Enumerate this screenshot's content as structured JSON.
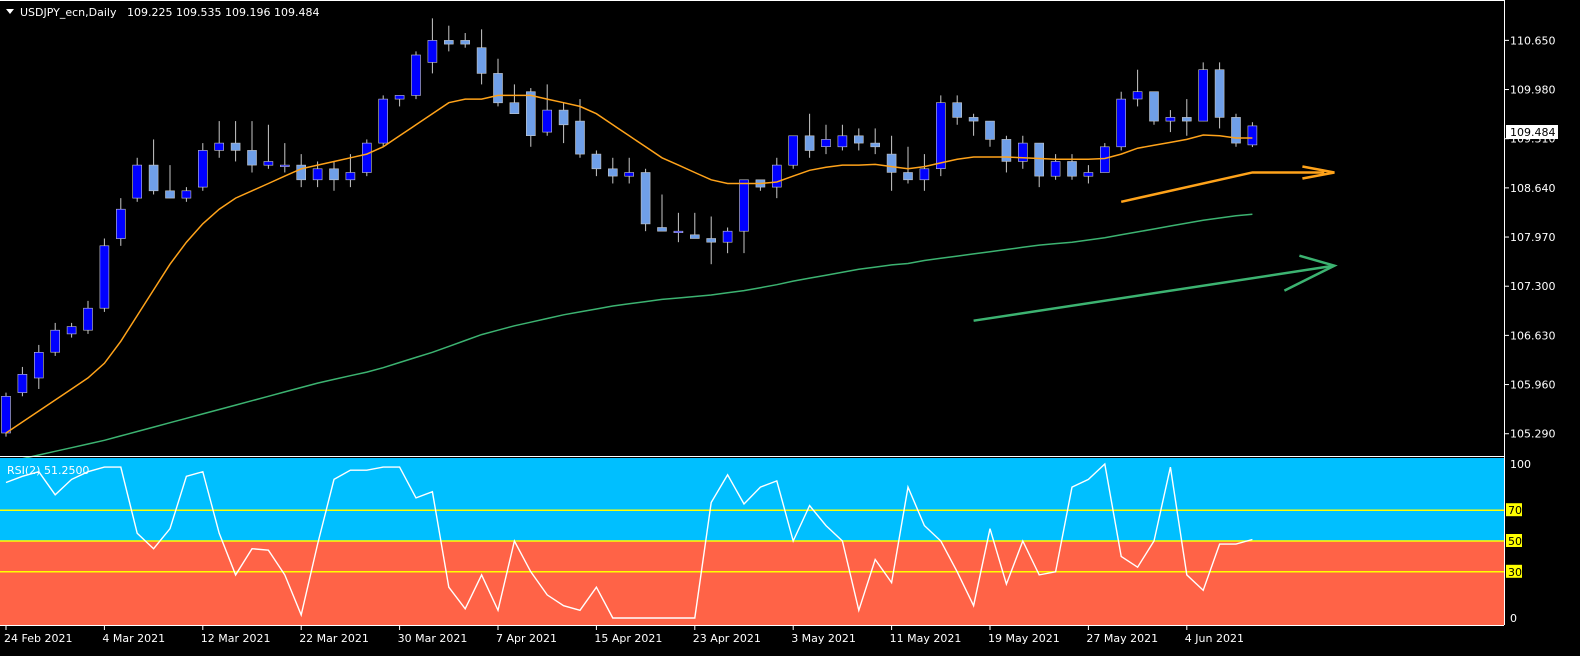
{
  "header": {
    "symbol_label": "USDJPY_ecn,Daily",
    "ohlc_label": "109.225 109.535 109.196 109.484"
  },
  "rsi_header": {
    "label": "RSI(2) 51.2500"
  },
  "current_price_label": "109.484",
  "colors": {
    "background": "#000000",
    "axis": "#ffffff",
    "bull_candle": "#0000ff",
    "bear_candle": "#6f9fe8",
    "ma_fast": "#ffa31a",
    "ma_slow": "#3cb371",
    "rsi_upper_zone": "#00bfff",
    "rsi_lower_zone": "#ff6347",
    "rsi_line": "#ffffff",
    "rsi_levels": "#ffff00",
    "arrow_orange": "#ffa31a",
    "arrow_green": "#3cb371"
  },
  "chart_data": {
    "type": "candlestick",
    "price_axis": {
      "ticks": [
        110.65,
        109.98,
        109.31,
        108.64,
        107.97,
        107.3,
        106.63,
        105.96,
        105.29
      ],
      "tick_labels": [
        "110.650",
        "109.980",
        "109.310",
        "108.640",
        "107.970",
        "107.300",
        "106.630",
        "105.960",
        "105.290"
      ]
    },
    "date_labels": [
      {
        "i": 0,
        "text": "24 Feb 2021"
      },
      {
        "i": 6,
        "text": "4 Mar 2021"
      },
      {
        "i": 12,
        "text": "12 Mar 2021"
      },
      {
        "i": 18,
        "text": "22 Mar 2021"
      },
      {
        "i": 24,
        "text": "30 Mar 2021"
      },
      {
        "i": 30,
        "text": "7 Apr 2021"
      },
      {
        "i": 36,
        "text": "15 Apr 2021"
      },
      {
        "i": 42,
        "text": "23 Apr 2021"
      },
      {
        "i": 48,
        "text": "3 May 2021"
      },
      {
        "i": 54,
        "text": "11 May 2021"
      },
      {
        "i": 60,
        "text": "19 May 2021"
      },
      {
        "i": 66,
        "text": "27 May 2021"
      },
      {
        "i": 72,
        "text": "4 Jun 2021"
      }
    ],
    "candles": [
      {
        "o": 105.3,
        "h": 105.85,
        "l": 105.25,
        "c": 105.8
      },
      {
        "o": 105.85,
        "h": 106.2,
        "l": 105.8,
        "c": 106.1
      },
      {
        "o": 106.05,
        "h": 106.5,
        "l": 105.9,
        "c": 106.4
      },
      {
        "o": 106.4,
        "h": 106.8,
        "l": 106.35,
        "c": 106.7
      },
      {
        "o": 106.65,
        "h": 106.8,
        "l": 106.6,
        "c": 106.75
      },
      {
        "o": 106.7,
        "h": 107.1,
        "l": 106.65,
        "c": 107.0
      },
      {
        "o": 107.0,
        "h": 107.95,
        "l": 106.95,
        "c": 107.85
      },
      {
        "o": 107.95,
        "h": 108.5,
        "l": 107.85,
        "c": 108.35
      },
      {
        "o": 108.5,
        "h": 109.05,
        "l": 108.45,
        "c": 108.95
      },
      {
        "o": 108.95,
        "h": 109.3,
        "l": 108.55,
        "c": 108.6
      },
      {
        "o": 108.6,
        "h": 108.95,
        "l": 108.5,
        "c": 108.5
      },
      {
        "o": 108.5,
        "h": 108.65,
        "l": 108.45,
        "c": 108.6
      },
      {
        "o": 108.65,
        "h": 109.25,
        "l": 108.6,
        "c": 109.15
      },
      {
        "o": 109.15,
        "h": 109.55,
        "l": 109.05,
        "c": 109.25
      },
      {
        "o": 109.25,
        "h": 109.55,
        "l": 109.0,
        "c": 109.15
      },
      {
        "o": 109.15,
        "h": 109.55,
        "l": 108.85,
        "c": 108.95
      },
      {
        "o": 108.95,
        "h": 109.5,
        "l": 108.9,
        "c": 109.0
      },
      {
        "o": 108.95,
        "h": 109.25,
        "l": 108.85,
        "c": 108.95
      },
      {
        "o": 108.95,
        "h": 109.1,
        "l": 108.65,
        "c": 108.75
      },
      {
        "o": 108.75,
        "h": 109.0,
        "l": 108.65,
        "c": 108.9
      },
      {
        "o": 108.9,
        "h": 109.0,
        "l": 108.6,
        "c": 108.75
      },
      {
        "o": 108.75,
        "h": 109.1,
        "l": 108.65,
        "c": 108.85
      },
      {
        "o": 108.85,
        "h": 109.3,
        "l": 108.8,
        "c": 109.25
      },
      {
        "o": 109.25,
        "h": 109.9,
        "l": 109.2,
        "c": 109.85
      },
      {
        "o": 109.85,
        "h": 109.9,
        "l": 109.75,
        "c": 109.9
      },
      {
        "o": 109.9,
        "h": 110.5,
        "l": 109.85,
        "c": 110.45
      },
      {
        "o": 110.35,
        "h": 110.95,
        "l": 110.2,
        "c": 110.65
      },
      {
        "o": 110.65,
        "h": 110.85,
        "l": 110.5,
        "c": 110.6
      },
      {
        "o": 110.65,
        "h": 110.75,
        "l": 110.55,
        "c": 110.6
      },
      {
        "o": 110.55,
        "h": 110.8,
        "l": 110.05,
        "c": 110.2
      },
      {
        "o": 110.2,
        "h": 110.4,
        "l": 109.75,
        "c": 109.8
      },
      {
        "o": 109.8,
        "h": 110.05,
        "l": 109.7,
        "c": 109.65
      },
      {
        "o": 109.95,
        "h": 110.0,
        "l": 109.2,
        "c": 109.35
      },
      {
        "o": 109.4,
        "h": 110.05,
        "l": 109.35,
        "c": 109.7
      },
      {
        "o": 109.7,
        "h": 109.8,
        "l": 109.25,
        "c": 109.5
      },
      {
        "o": 109.55,
        "h": 109.85,
        "l": 109.05,
        "c": 109.1
      },
      {
        "o": 109.1,
        "h": 109.15,
        "l": 108.8,
        "c": 108.9
      },
      {
        "o": 108.9,
        "h": 109.05,
        "l": 108.7,
        "c": 108.8
      },
      {
        "o": 108.8,
        "h": 109.05,
        "l": 108.7,
        "c": 108.85
      },
      {
        "o": 108.85,
        "h": 108.9,
        "l": 108.05,
        "c": 108.15
      },
      {
        "o": 108.1,
        "h": 108.55,
        "l": 108.05,
        "c": 108.05
      },
      {
        "o": 108.05,
        "h": 108.3,
        "l": 107.9,
        "c": 108.05
      },
      {
        "o": 108.0,
        "h": 108.3,
        "l": 107.95,
        "c": 107.95
      },
      {
        "o": 107.95,
        "h": 108.25,
        "l": 107.6,
        "c": 107.9
      },
      {
        "o": 107.9,
        "h": 108.1,
        "l": 107.75,
        "c": 108.05
      },
      {
        "o": 108.05,
        "h": 108.75,
        "l": 107.75,
        "c": 108.75
      },
      {
        "o": 108.75,
        "h": 108.75,
        "l": 108.6,
        "c": 108.65
      },
      {
        "o": 108.65,
        "h": 109.05,
        "l": 108.5,
        "c": 108.95
      },
      {
        "o": 108.95,
        "h": 109.35,
        "l": 108.9,
        "c": 109.35
      },
      {
        "o": 109.35,
        "h": 109.65,
        "l": 109.05,
        "c": 109.15
      },
      {
        "o": 109.2,
        "h": 109.5,
        "l": 109.1,
        "c": 109.3
      },
      {
        "o": 109.2,
        "h": 109.5,
        "l": 109.15,
        "c": 109.35
      },
      {
        "o": 109.35,
        "h": 109.45,
        "l": 109.15,
        "c": 109.25
      },
      {
        "o": 109.25,
        "h": 109.45,
        "l": 109.1,
        "c": 109.2
      },
      {
        "o": 109.1,
        "h": 109.35,
        "l": 108.6,
        "c": 108.85
      },
      {
        "o": 108.85,
        "h": 109.2,
        "l": 108.7,
        "c": 108.75
      },
      {
        "o": 108.75,
        "h": 109.1,
        "l": 108.6,
        "c": 108.9
      },
      {
        "o": 108.9,
        "h": 109.9,
        "l": 108.8,
        "c": 109.8
      },
      {
        "o": 109.8,
        "h": 109.9,
        "l": 109.5,
        "c": 109.6
      },
      {
        "o": 109.6,
        "h": 109.65,
        "l": 109.35,
        "c": 109.55
      },
      {
        "o": 109.55,
        "h": 109.55,
        "l": 109.2,
        "c": 109.3
      },
      {
        "o": 109.3,
        "h": 109.35,
        "l": 108.85,
        "c": 109.0
      },
      {
        "o": 109.0,
        "h": 109.35,
        "l": 108.9,
        "c": 109.25
      },
      {
        "o": 109.25,
        "h": 109.25,
        "l": 108.65,
        "c": 108.8
      },
      {
        "o": 108.8,
        "h": 109.1,
        "l": 108.75,
        "c": 109.0
      },
      {
        "o": 109.0,
        "h": 109.1,
        "l": 108.75,
        "c": 108.8
      },
      {
        "o": 108.8,
        "h": 108.95,
        "l": 108.7,
        "c": 108.85
      },
      {
        "o": 108.85,
        "h": 109.25,
        "l": 108.85,
        "c": 109.2
      },
      {
        "o": 109.2,
        "h": 109.95,
        "l": 109.15,
        "c": 109.85
      },
      {
        "o": 109.85,
        "h": 110.25,
        "l": 109.75,
        "c": 109.95
      },
      {
        "o": 109.95,
        "h": 109.95,
        "l": 109.5,
        "c": 109.55
      },
      {
        "o": 109.55,
        "h": 109.7,
        "l": 109.4,
        "c": 109.6
      },
      {
        "o": 109.6,
        "h": 109.85,
        "l": 109.35,
        "c": 109.55
      },
      {
        "o": 109.55,
        "h": 110.35,
        "l": 109.55,
        "c": 110.25
      },
      {
        "o": 110.25,
        "h": 110.35,
        "l": 109.45,
        "c": 109.6
      },
      {
        "o": 109.6,
        "h": 109.65,
        "l": 109.2,
        "c": 109.25
      },
      {
        "o": 109.225,
        "h": 109.535,
        "l": 109.196,
        "c": 109.484
      }
    ],
    "ma_fast": [
      105.3,
      105.45,
      105.6,
      105.75,
      105.9,
      106.05,
      106.25,
      106.55,
      106.9,
      107.25,
      107.6,
      107.9,
      108.15,
      108.35,
      108.5,
      108.6,
      108.7,
      108.8,
      108.9,
      108.95,
      109.0,
      109.05,
      109.1,
      109.2,
      109.35,
      109.5,
      109.65,
      109.8,
      109.85,
      109.85,
      109.9,
      109.9,
      109.9,
      109.85,
      109.8,
      109.75,
      109.65,
      109.5,
      109.35,
      109.2,
      109.05,
      108.95,
      108.85,
      108.75,
      108.7,
      108.7,
      108.7,
      108.72,
      108.8,
      108.88,
      108.92,
      108.95,
      108.95,
      108.96,
      108.93,
      108.9,
      108.93,
      108.98,
      109.03,
      109.06,
      109.06,
      109.06,
      109.05,
      109.04,
      109.03,
      109.03,
      109.03,
      109.04,
      109.1,
      109.18,
      109.22,
      109.26,
      109.3,
      109.36,
      109.35,
      109.32,
      109.32
    ],
    "ma_slow": [
      104.9,
      104.95,
      105.0,
      105.05,
      105.1,
      105.15,
      105.2,
      105.26,
      105.32,
      105.38,
      105.44,
      105.5,
      105.56,
      105.62,
      105.68,
      105.74,
      105.8,
      105.86,
      105.92,
      105.98,
      106.03,
      106.08,
      106.13,
      106.19,
      106.26,
      106.33,
      106.4,
      106.48,
      106.56,
      106.64,
      106.7,
      106.76,
      106.81,
      106.86,
      106.91,
      106.95,
      106.99,
      107.03,
      107.06,
      107.09,
      107.12,
      107.14,
      107.16,
      107.18,
      107.21,
      107.24,
      107.28,
      107.32,
      107.37,
      107.41,
      107.45,
      107.49,
      107.53,
      107.56,
      107.59,
      107.61,
      107.65,
      107.68,
      107.71,
      107.74,
      107.77,
      107.8,
      107.83,
      107.86,
      107.88,
      107.9,
      107.93,
      107.96,
      108.0,
      108.04,
      108.08,
      108.12,
      108.16,
      108.2,
      108.23,
      108.26,
      108.28
    ],
    "rsi": {
      "levels": [
        70,
        50,
        30
      ],
      "level_labels": [
        "70",
        "50",
        "30"
      ],
      "axis_labels": [
        {
          "v": 100,
          "text": "100"
        },
        {
          "v": 0,
          "text": "0"
        }
      ],
      "values": [
        88,
        92,
        95,
        80,
        90,
        95,
        98,
        98,
        55,
        45,
        58,
        92,
        95,
        55,
        28,
        45,
        44,
        28,
        2,
        48,
        90,
        96,
        96,
        98,
        98,
        78,
        82,
        20,
        6,
        28,
        5,
        50,
        30,
        15,
        8,
        5,
        20,
        0,
        0,
        0,
        0,
        0,
        0,
        75,
        93,
        74,
        85,
        89,
        50,
        73,
        60,
        50,
        5,
        38,
        23,
        85,
        60,
        50,
        30,
        8,
        58,
        22,
        50,
        28,
        30,
        85,
        90,
        100,
        40,
        33,
        50,
        98,
        28,
        18,
        48,
        48,
        51
      ]
    },
    "annotations": {
      "orange_arrow": {
        "from": {
          "i": 68,
          "price": 108.45
        },
        "via": {
          "i": 76,
          "price": 108.85
        },
        "to": {
          "i": 81,
          "price": 108.85
        }
      },
      "green_arrow": {
        "from": {
          "i": 59,
          "price": 106.83
        },
        "to": {
          "i": 81,
          "price": 107.58
        }
      }
    }
  }
}
